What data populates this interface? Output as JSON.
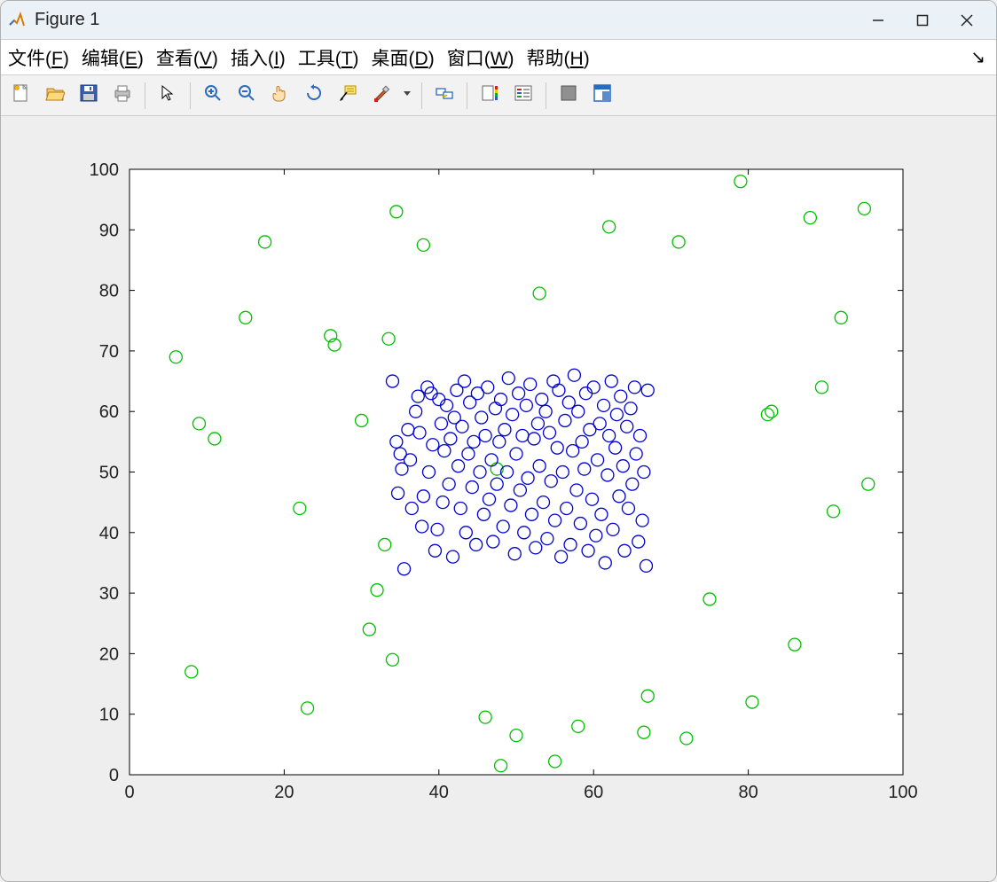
{
  "window": {
    "title": "Figure 1",
    "bg_outer": "#eeeeee",
    "titlebar_bg": "#eaf2f8"
  },
  "menubar": {
    "items": [
      {
        "label": "文件",
        "accel": "F"
      },
      {
        "label": "编辑",
        "accel": "E"
      },
      {
        "label": "查看",
        "accel": "V"
      },
      {
        "label": "插入",
        "accel": "I"
      },
      {
        "label": "工具",
        "accel": "T"
      },
      {
        "label": "桌面",
        "accel": "D"
      },
      {
        "label": "窗口",
        "accel": "W"
      },
      {
        "label": "帮助",
        "accel": "H"
      }
    ]
  },
  "toolbar": {
    "groups": [
      [
        "new",
        "open",
        "save",
        "print"
      ],
      [
        "pointer"
      ],
      [
        "zoom-in",
        "zoom-out",
        "pan",
        "rotate",
        "data-cursor",
        "brush",
        "dropdown"
      ],
      [
        "link"
      ],
      [
        "colorbar",
        "legend"
      ],
      [
        "hide",
        "dock"
      ]
    ]
  },
  "chart": {
    "type": "scatter",
    "xlim": [
      0,
      100
    ],
    "ylim": [
      0,
      100
    ],
    "xticks": [
      0,
      20,
      40,
      60,
      80,
      100
    ],
    "yticks": [
      0,
      10,
      20,
      30,
      40,
      50,
      60,
      70,
      80,
      90,
      100
    ],
    "tick_fontsize": 20,
    "tick_color": "#222222",
    "axis_box_color": "#000000",
    "background_color": "#ffffff",
    "plot_area_bg": "#eeeeee",
    "marker_size": 7,
    "marker_stroke": 1.3,
    "series": [
      {
        "name": "green",
        "color": "#00c000",
        "points": [
          [
            6,
            69
          ],
          [
            8,
            17
          ],
          [
            9,
            58
          ],
          [
            11,
            55.5
          ],
          [
            15,
            75.5
          ],
          [
            17.5,
            88
          ],
          [
            22,
            44
          ],
          [
            23,
            11
          ],
          [
            26,
            72.5
          ],
          [
            26.5,
            71
          ],
          [
            30,
            58.5
          ],
          [
            31,
            24
          ],
          [
            32,
            30.5
          ],
          [
            33,
            38
          ],
          [
            33.5,
            72
          ],
          [
            34,
            19
          ],
          [
            34.5,
            93
          ],
          [
            38,
            87.5
          ],
          [
            46,
            9.5
          ],
          [
            47.5,
            50.5
          ],
          [
            48,
            1.5
          ],
          [
            50,
            6.5
          ],
          [
            53,
            79.5
          ],
          [
            55,
            2.2
          ],
          [
            58,
            8
          ],
          [
            62,
            90.5
          ],
          [
            67,
            13
          ],
          [
            66.5,
            7
          ],
          [
            71,
            88
          ],
          [
            72,
            6
          ],
          [
            75,
            29
          ],
          [
            79,
            98
          ],
          [
            80.5,
            12
          ],
          [
            83,
            60
          ],
          [
            82.5,
            59.5
          ],
          [
            86,
            21.5
          ],
          [
            88,
            92
          ],
          [
            89.5,
            64
          ],
          [
            91,
            43.5
          ],
          [
            92,
            75.5
          ],
          [
            95,
            93.5
          ],
          [
            95.5,
            48
          ]
        ]
      },
      {
        "name": "blue",
        "color": "#0000d0",
        "points": [
          [
            34,
            65
          ],
          [
            34.5,
            55
          ],
          [
            34.7,
            46.5
          ],
          [
            35,
            53
          ],
          [
            35.2,
            50.5
          ],
          [
            35.5,
            34
          ],
          [
            36,
            57
          ],
          [
            36.3,
            52
          ],
          [
            36.5,
            44
          ],
          [
            37,
            60
          ],
          [
            37.3,
            62.5
          ],
          [
            37.5,
            56.5
          ],
          [
            37.8,
            41
          ],
          [
            38,
            46
          ],
          [
            38.5,
            64
          ],
          [
            38.7,
            50
          ],
          [
            39,
            63
          ],
          [
            39.2,
            54.5
          ],
          [
            39.5,
            37
          ],
          [
            39.8,
            40.5
          ],
          [
            40,
            62
          ],
          [
            40.3,
            58
          ],
          [
            40.5,
            45
          ],
          [
            40.7,
            53.5
          ],
          [
            41,
            61
          ],
          [
            41.3,
            48
          ],
          [
            41.5,
            55.5
          ],
          [
            41.8,
            36
          ],
          [
            42,
            59
          ],
          [
            42.3,
            63.5
          ],
          [
            42.5,
            51
          ],
          [
            42.8,
            44
          ],
          [
            43,
            57.5
          ],
          [
            43.3,
            65
          ],
          [
            43.5,
            40
          ],
          [
            43.8,
            53
          ],
          [
            44,
            61.5
          ],
          [
            44.3,
            47.5
          ],
          [
            44.5,
            55
          ],
          [
            44.8,
            38
          ],
          [
            45,
            63
          ],
          [
            45.3,
            50
          ],
          [
            45.5,
            59
          ],
          [
            45.8,
            43
          ],
          [
            46,
            56
          ],
          [
            46.3,
            64
          ],
          [
            46.5,
            45.5
          ],
          [
            46.8,
            52
          ],
          [
            47,
            38.5
          ],
          [
            47.3,
            60.5
          ],
          [
            47.5,
            48
          ],
          [
            47.8,
            55
          ],
          [
            48,
            62
          ],
          [
            48.3,
            41
          ],
          [
            48.5,
            57
          ],
          [
            48.8,
            50
          ],
          [
            49,
            65.5
          ],
          [
            49.3,
            44.5
          ],
          [
            49.5,
            59.5
          ],
          [
            49.8,
            36.5
          ],
          [
            50,
            53
          ],
          [
            50.3,
            63
          ],
          [
            50.5,
            47
          ],
          [
            50.8,
            56
          ],
          [
            51,
            40
          ],
          [
            51.3,
            61
          ],
          [
            51.5,
            49
          ],
          [
            51.8,
            64.5
          ],
          [
            52,
            43
          ],
          [
            52.3,
            55.5
          ],
          [
            52.5,
            37.5
          ],
          [
            52.8,
            58
          ],
          [
            53,
            51
          ],
          [
            53.3,
            62
          ],
          [
            53.5,
            45
          ],
          [
            53.8,
            60
          ],
          [
            54,
            39
          ],
          [
            54.3,
            56.5
          ],
          [
            54.5,
            48.5
          ],
          [
            54.8,
            65
          ],
          [
            55,
            42
          ],
          [
            55.3,
            54
          ],
          [
            55.5,
            63.5
          ],
          [
            55.8,
            36
          ],
          [
            56,
            50
          ],
          [
            56.3,
            58.5
          ],
          [
            56.5,
            44
          ],
          [
            56.8,
            61.5
          ],
          [
            57,
            38
          ],
          [
            57.3,
            53.5
          ],
          [
            57.5,
            66
          ],
          [
            57.8,
            47
          ],
          [
            58,
            60
          ],
          [
            58.3,
            41.5
          ],
          [
            58.5,
            55
          ],
          [
            58.8,
            50.5
          ],
          [
            59,
            63
          ],
          [
            59.3,
            37
          ],
          [
            59.5,
            57
          ],
          [
            59.8,
            45.5
          ],
          [
            60,
            64
          ],
          [
            60.3,
            39.5
          ],
          [
            60.5,
            52
          ],
          [
            60.8,
            58
          ],
          [
            61,
            43
          ],
          [
            61.3,
            61
          ],
          [
            61.5,
            35
          ],
          [
            61.8,
            49.5
          ],
          [
            62,
            56
          ],
          [
            62.3,
            65
          ],
          [
            62.5,
            40.5
          ],
          [
            62.8,
            54
          ],
          [
            63,
            59.5
          ],
          [
            63.3,
            46
          ],
          [
            63.5,
            62.5
          ],
          [
            63.8,
            51
          ],
          [
            64,
            37
          ],
          [
            64.3,
            57.5
          ],
          [
            64.5,
            44
          ],
          [
            64.8,
            60.5
          ],
          [
            65,
            48
          ],
          [
            65.3,
            64
          ],
          [
            65.5,
            53
          ],
          [
            65.8,
            38.5
          ],
          [
            66,
            56
          ],
          [
            66.3,
            42
          ],
          [
            66.5,
            50
          ],
          [
            66.8,
            34.5
          ],
          [
            67,
            63.5
          ]
        ]
      }
    ]
  }
}
